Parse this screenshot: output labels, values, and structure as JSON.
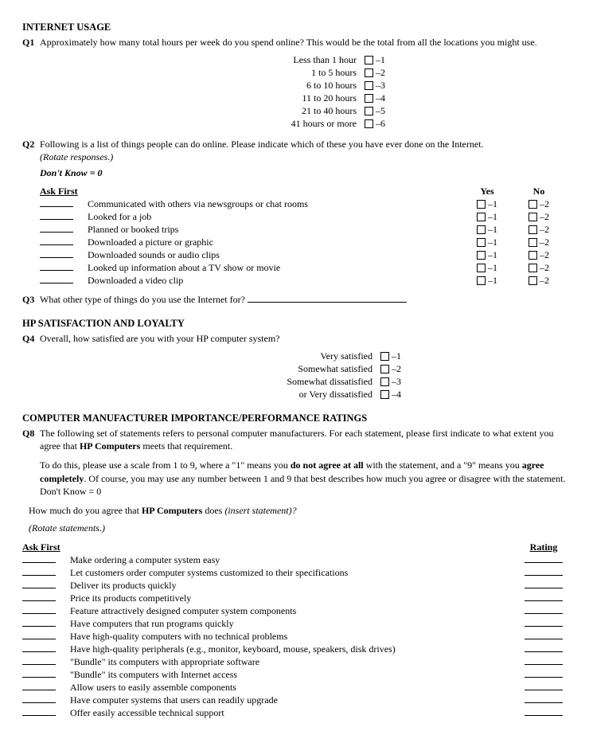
{
  "s1": {
    "heading": "INTERNET USAGE",
    "q1": {
      "num": "Q1",
      "text": "Approximately how many total hours per week do you spend online? This would be the total from all the locations you might use.",
      "options": [
        {
          "label": "Less than 1 hour",
          "code": "–1"
        },
        {
          "label": "1 to 5 hours",
          "code": "–2"
        },
        {
          "label": "6 to 10 hours",
          "code": "–3"
        },
        {
          "label": "11 to 20 hours",
          "code": "–4"
        },
        {
          "label": "21 to 40 hours",
          "code": "–5"
        },
        {
          "label": "41 hours or more",
          "code": "–6"
        }
      ],
      "label_width": 420
    },
    "q2": {
      "num": "Q2",
      "text": "Following is a list of things people can do online. Please indicate which of these you have ever done on the Internet.",
      "rotate": "(Rotate responses.)",
      "dk": "Don't Know = 0",
      "ask_first": "Ask First",
      "yes": "Yes",
      "no": "No",
      "yes_code": "–1",
      "no_code": "–2",
      "items": [
        "Communicated with others via newsgroups or chat rooms",
        "Looked for a job",
        "Planned or booked trips",
        "Downloaded a picture or graphic",
        "Downloaded sounds or audio clips",
        "Looked up information about a TV show or movie",
        "Downloaded a video clip"
      ]
    },
    "q3": {
      "num": "Q3",
      "text": "What other type of things do you use the Internet for?"
    }
  },
  "s2": {
    "heading": "HP SATISFACTION AND LOYALTY",
    "q4": {
      "num": "Q4",
      "text": "Overall, how satisfied are you with your HP computer system?",
      "options": [
        {
          "label": "Very satisfied",
          "code": "–1"
        },
        {
          "label": "Somewhat satisfied",
          "code": "–2"
        },
        {
          "label": "Somewhat dissatisfied",
          "code": "–3"
        },
        {
          "label": "or Very dissatisfied",
          "code": "–4"
        }
      ],
      "label_width": 440
    }
  },
  "s3": {
    "heading": "COMPUTER MANUFACTURER IMPORTANCE/PERFORMANCE RATINGS",
    "q8": {
      "num": "Q8",
      "text_a": "The following set of statements refers to personal computer manufacturers. For each statement, please first indicate to what extent you agree that ",
      "text_b": "HP Computers",
      "text_c": " meets that requirement.",
      "p2_a": "To do this, please use a scale from 1 to 9, where a \"1\" means you ",
      "p2_b": "do not agree at all",
      "p2_c": " with the statement, and a \"9\" means you ",
      "p2_d": "agree completely",
      "p2_e": ". Of course, you may use any number between 1 and 9 that best describes how much you agree or disagree with the statement. Don't Know = 0",
      "p3_a": "How much do you agree that ",
      "p3_b": "HP Computers",
      "p3_c": " does ",
      "p3_d": "(insert statement)?",
      "rotate": "(Rotate statements.)",
      "ask_first": "Ask First",
      "rating": "Rating",
      "items": [
        "Make ordering a computer system easy",
        "Let customers order computer systems customized to their specifications",
        "Deliver its products quickly",
        "Price its products competitively",
        "Feature attractively designed computer system components",
        "Have computers that run programs quickly",
        "Have high-quality computers with no technical problems",
        "Have high-quality peripherals (e.g., monitor, keyboard, mouse, speakers, disk drives)",
        "\"Bundle\" its computers with appropriate software",
        "\"Bundle\" its computers with Internet access",
        "Allow users to easily assemble components",
        "Have computer systems that users can readily upgrade",
        "Offer easily accessible technical support"
      ]
    }
  }
}
